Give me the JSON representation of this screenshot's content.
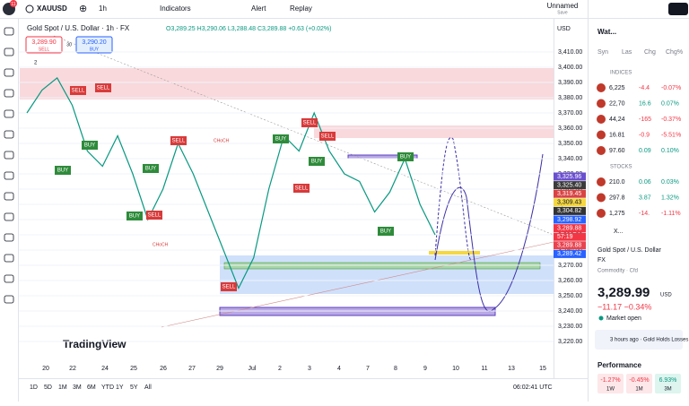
{
  "top_bar": {
    "notifications": "11",
    "symbol": "XAUUSD",
    "interval": "1h",
    "indicators": "Indicators",
    "alert": "Alert",
    "replay": "Replay",
    "layout_name": "Unnamed",
    "save": "Save"
  },
  "chart": {
    "title": "Gold Spot / U.S. Dollar · 1h · FX",
    "ohlc": "O3,289.25 H3,290.06 L3,288.48 C3,289.88 +0.63 (+0.02%)",
    "sell_price": "3,289.90",
    "sell": "SELL",
    "spread": "30",
    "buy_price": "3,290.20",
    "buy": "BUY",
    "currency": "USD",
    "indicator_count": "2",
    "watermark": "TradingView",
    "price_trace": [
      3370,
      3385,
      3393,
      3375,
      3345,
      3335,
      3355,
      3330,
      3300,
      3320,
      3350,
      3330,
      3305,
      3280,
      3255,
      3275,
      3320,
      3355,
      3345,
      3370,
      3345,
      3330,
      3325,
      3305,
      3318,
      3340,
      3310,
      3290
    ],
    "signals": [
      "SELL",
      "SELL",
      "BUY",
      "BUY",
      "SELL",
      "BUY",
      "BUY",
      "SELL",
      "BUY",
      "SELL",
      "SELL",
      "BUY",
      "SELL",
      "BUY",
      "BUY",
      "SELL"
    ],
    "annotations": [
      "CHoCH",
      "CHoCH"
    ]
  },
  "price_ticks": [
    "3,410.00",
    "3,400.00",
    "3,390.00",
    "3,380.00",
    "3,370.00",
    "3,360.00",
    "3,350.00",
    "3,340.00",
    "3,330.00",
    "3,320.00",
    "3,310.00",
    "3,300.00",
    "3,290.00",
    "3,280.00",
    "3,270.00",
    "3,260.00",
    "3,250.00",
    "3,240.00",
    "3,230.00",
    "3,220.00"
  ],
  "price_labels": [
    {
      "label": "3,325.96",
      "color": "#6a4fcf"
    },
    {
      "label": "3,325.40",
      "color": "#3b3b3b"
    },
    {
      "label": "3,319.45",
      "color": "#d84343"
    },
    {
      "label": "3,309.43",
      "color": "#f5d742"
    },
    {
      "label": "3,304.82",
      "color": "#333333"
    },
    {
      "label": "3,298.92",
      "color": "#2962ff"
    },
    {
      "label": "3,289.88",
      "color": "#f23645"
    },
    {
      "label": "57:19",
      "color": "#f23645"
    },
    {
      "label": "3,289.88",
      "color": "#e8434f"
    },
    {
      "label": "3,289.42",
      "color": "#2962ff"
    }
  ],
  "date_labels": [
    "20",
    "22",
    "24",
    "25",
    "26",
    "27",
    "29",
    "Jul",
    "2",
    "3",
    "4",
    "7",
    "8",
    "9",
    "10",
    "11",
    "13",
    "15"
  ],
  "bottom_bar": {
    "ranges": [
      "1D",
      "5D",
      "1M",
      "3M",
      "6M",
      "YTD",
      "1Y",
      "5Y",
      "All"
    ],
    "time": "06:02:41 UTC"
  },
  "watchlist": {
    "title": "Wat...",
    "columns": [
      "Syn",
      "Las",
      "Chg",
      "Chg%"
    ],
    "indices_label": "INDICES",
    "indices": [
      [
        "6,225",
        "-4.4",
        "-0.07%"
      ],
      [
        "22,70",
        "16.6",
        "0.07%"
      ],
      [
        "44,24",
        "-165",
        "-0.37%"
      ],
      [
        "16.81",
        "-0.9",
        "-5.51%"
      ],
      [
        "97.60",
        "0.09",
        "0.10%"
      ]
    ],
    "stocks_label": "STOCKS",
    "stocks": [
      [
        "210.0",
        "0.06",
        "0.03%"
      ],
      [
        "297.8",
        "3.87",
        "1.32%"
      ],
      [
        "1,275",
        "-14.",
        "-1.11%"
      ]
    ]
  },
  "details": {
    "symbol": "X...",
    "name": "Gold Spot / U.S. Dollar",
    "market": "FX",
    "kind": "Commodity · Cfd",
    "price": "3,289.99",
    "currency": "USD",
    "change": "−11.17  −0.34%",
    "status": "Market open",
    "news": "3 hours ago · Gold Holds Losses",
    "performance": "Performance",
    "perf": [
      [
        "-1.27%",
        "1W"
      ],
      [
        "-0.45%",
        "1M"
      ],
      [
        "6.93%",
        "3M"
      ]
    ]
  }
}
